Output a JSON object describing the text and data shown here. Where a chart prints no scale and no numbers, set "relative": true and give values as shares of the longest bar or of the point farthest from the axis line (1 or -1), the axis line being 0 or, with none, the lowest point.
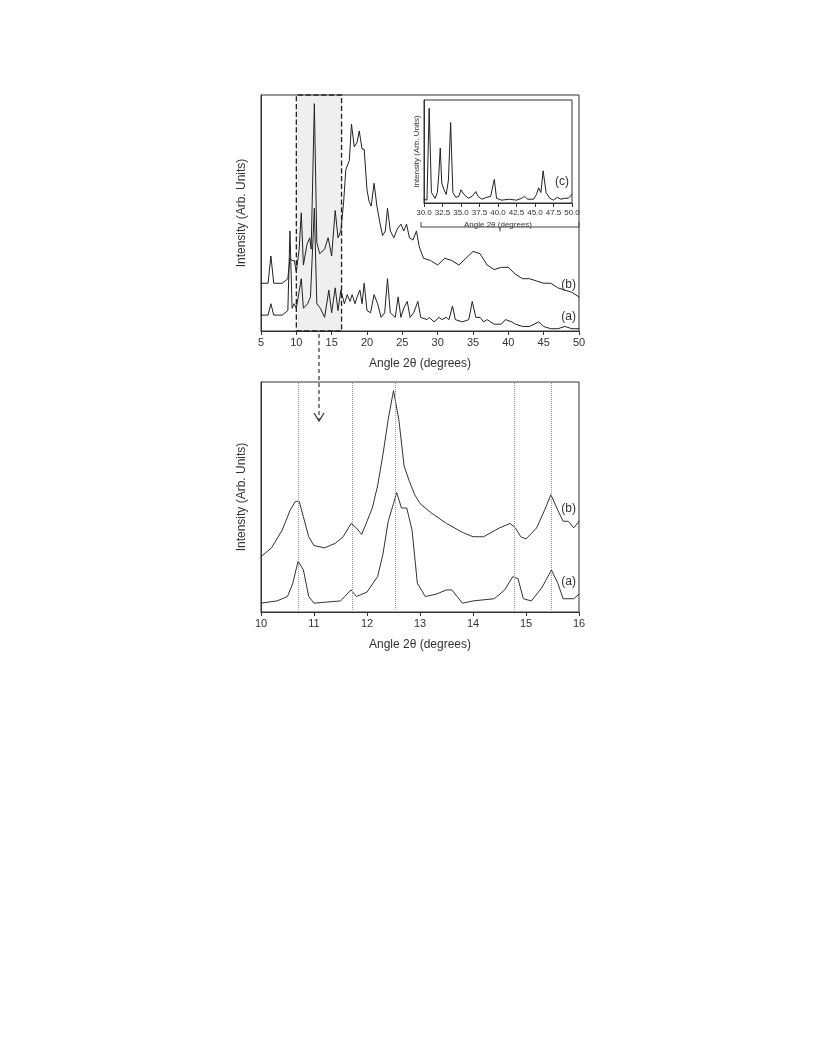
{
  "chart_data": [
    {
      "type": "line",
      "relative": true,
      "xlabel": "Angle 2θ (degrees)",
      "ylabel": "Intensity (Arb. Units)",
      "xlim": [
        5,
        50
      ],
      "xticks": [
        5,
        10,
        15,
        20,
        25,
        30,
        35,
        40,
        45,
        50
      ],
      "tick_labels": "x",
      "marker": "none",
      "line_style": "solid",
      "bands": [
        {
          "axis": "x",
          "from": 10,
          "to": 16.4,
          "color": "#222222"
        }
      ],
      "series": [
        {
          "name": "(b)",
          "color": "#222222",
          "x": [
            5,
            6,
            6.4,
            6.8,
            8,
            8.8,
            9.1,
            9.4,
            9.7,
            10,
            10.4,
            10.7,
            11,
            11.5,
            11.9,
            12.1,
            12.55,
            12.9,
            13.3,
            14,
            14.5,
            15,
            15.5,
            15.9,
            16.3,
            16.7,
            17,
            17.5,
            17.8,
            18.2,
            18.6,
            18.9,
            19.3,
            19.6,
            20,
            20.3,
            20.6,
            21,
            21.4,
            21.8,
            22.2,
            22.6,
            22.9,
            23.3,
            23.8,
            24.3,
            24.8,
            25.2,
            25.6,
            26,
            26.5,
            27,
            27.4,
            28,
            29,
            30,
            31,
            32,
            33,
            34,
            35,
            36,
            37,
            38,
            39,
            40,
            41,
            42,
            43,
            44,
            45,
            46,
            47,
            48,
            49,
            50
          ],
          "values": [
            0.21,
            0.21,
            0.33,
            0.21,
            0.21,
            0.23,
            0.32,
            0.31,
            0.31,
            0.26,
            0.36,
            0.52,
            0.29,
            0.38,
            0.41,
            0.36,
            1.0,
            0.39,
            0.34,
            0.36,
            0.41,
            0.33,
            0.53,
            0.41,
            0.44,
            0.57,
            0.71,
            0.75,
            0.91,
            0.81,
            0.83,
            0.88,
            0.8,
            0.8,
            0.62,
            0.57,
            0.55,
            0.65,
            0.55,
            0.48,
            0.42,
            0.44,
            0.54,
            0.44,
            0.41,
            0.45,
            0.47,
            0.44,
            0.47,
            0.41,
            0.4,
            0.44,
            0.37,
            0.32,
            0.31,
            0.29,
            0.32,
            0.31,
            0.29,
            0.32,
            0.35,
            0.34,
            0.29,
            0.27,
            0.28,
            0.28,
            0.25,
            0.23,
            0.23,
            0.22,
            0.21,
            0.21,
            0.19,
            0.18,
            0.17,
            0.15
          ]
        },
        {
          "name": "(a)",
          "color": "#222222",
          "x": [
            5,
            6,
            6.4,
            6.8,
            8,
            8.8,
            9.1,
            9.4,
            9.7,
            10,
            10.7,
            11,
            11.6,
            12,
            12.55,
            12.9,
            13.4,
            14,
            14.6,
            15,
            15.5,
            15.9,
            16.3,
            16.8,
            17.2,
            17.6,
            17.9,
            18.3,
            18.6,
            19,
            19.3,
            19.6,
            20,
            20.5,
            21,
            21.5,
            22,
            22.5,
            22.9,
            23.3,
            24,
            24.4,
            24.8,
            25.2,
            25.7,
            26.1,
            26.6,
            27.2,
            27.6,
            28.5,
            28.8,
            29.5,
            30.2,
            30.6,
            31.2,
            31.6,
            32.1,
            32.5,
            33.5,
            34.4,
            34.9,
            35.4,
            36,
            36.5,
            37,
            38,
            39,
            39.6,
            40.5,
            41,
            42,
            43,
            44.3,
            45,
            46,
            47,
            48,
            49,
            50
          ],
          "values": [
            0.07,
            0.07,
            0.12,
            0.07,
            0.07,
            0.09,
            0.44,
            0.1,
            0.12,
            0.1,
            0.23,
            0.1,
            0.12,
            0.15,
            0.54,
            0.12,
            0.1,
            0.06,
            0.18,
            0.08,
            0.19,
            0.09,
            0.18,
            0.12,
            0.16,
            0.13,
            0.16,
            0.12,
            0.15,
            0.18,
            0.12,
            0.21,
            0.09,
            0.08,
            0.16,
            0.12,
            0.06,
            0.08,
            0.23,
            0.08,
            0.06,
            0.15,
            0.06,
            0.1,
            0.13,
            0.06,
            0.08,
            0.13,
            0.06,
            0.05,
            0.06,
            0.04,
            0.06,
            0.05,
            0.06,
            0.05,
            0.11,
            0.05,
            0.04,
            0.05,
            0.13,
            0.06,
            0.06,
            0.04,
            0.05,
            0.03,
            0.03,
            0.05,
            0.04,
            0.03,
            0.02,
            0.02,
            0.04,
            0.02,
            0.01,
            0.01,
            0.02,
            0.01,
            0.01
          ]
        }
      ]
    },
    {
      "type": "line",
      "relative": true,
      "xlabel": "Angle 2θ (degrees)",
      "ylabel": "Intensity (Arb. Units)",
      "xlim": [
        30,
        50
      ],
      "xticks": [
        {
          "value": 30,
          "label": "30.0"
        },
        {
          "value": 32.5,
          "label": "32.5"
        },
        {
          "value": 35,
          "label": "35.0"
        },
        {
          "value": 37.5,
          "label": "37.5"
        },
        {
          "value": 40,
          "label": "40.0"
        },
        {
          "value": 42.5,
          "label": "42.5"
        },
        {
          "value": 45,
          "label": "45.0"
        },
        {
          "value": 47.5,
          "label": "47.5"
        },
        {
          "value": 50,
          "label": "50.0"
        }
      ],
      "tick_labels": "x",
      "marker": "none",
      "line_style": "solid",
      "series": [
        {
          "name": "(c)",
          "color": "#222222",
          "x": [
            30,
            30.4,
            30.7,
            31,
            31.5,
            31.8,
            32,
            32.2,
            32.4,
            32.7,
            33,
            33.3,
            33.6,
            33.9,
            34.3,
            34.7,
            35,
            35.4,
            36,
            36.5,
            37,
            37.3,
            37.8,
            38.5,
            39,
            39.5,
            39.8,
            40.5,
            41.5,
            42.5,
            43.2,
            43.6,
            44,
            44.8,
            45.2,
            45.5,
            45.8,
            46.1,
            46.5,
            47,
            47.5,
            48,
            48.5,
            49,
            49.5,
            50
          ],
          "values": [
            0.04,
            0.03,
            1.0,
            0.11,
            0.05,
            0.11,
            0.3,
            0.58,
            0.21,
            0.14,
            0.09,
            0.24,
            0.85,
            0.11,
            0.06,
            0.07,
            0.14,
            0.09,
            0.05,
            0.07,
            0.12,
            0.07,
            0.04,
            0.06,
            0.07,
            0.25,
            0.05,
            0.03,
            0.04,
            0.03,
            0.05,
            0.07,
            0.04,
            0.04,
            0.09,
            0.16,
            0.11,
            0.34,
            0.11,
            0.05,
            0.03,
            0.06,
            0.04,
            0.05,
            0.05,
            0.09
          ]
        }
      ]
    },
    {
      "type": "line",
      "relative": true,
      "xlabel": "Angle 2θ (degrees)",
      "ylabel": "Intensity (Arb. Units)",
      "xlim": [
        10,
        16
      ],
      "xticks": [
        10,
        11,
        12,
        13,
        14,
        15,
        16
      ],
      "tick_labels": "x",
      "marker": "none",
      "line_style": "solid",
      "ref_lines": [
        {
          "axis": "x",
          "value": 10.7,
          "color": "#999999",
          "line_style": "dotted"
        },
        {
          "axis": "x",
          "value": 11.72,
          "color": "#999999",
          "line_style": "dotted"
        },
        {
          "axis": "x",
          "value": 12.54,
          "color": "#999999",
          "line_style": "dotted"
        },
        {
          "axis": "x",
          "value": 14.77,
          "color": "#999999",
          "line_style": "dotted"
        },
        {
          "axis": "x",
          "value": 15.48,
          "color": "#999999",
          "line_style": "dotted"
        }
      ],
      "series": [
        {
          "name": "(b)",
          "color": "#333333",
          "x": [
            10,
            10.2,
            10.4,
            10.55,
            10.65,
            10.72,
            10.8,
            10.9,
            11,
            11.2,
            11.4,
            11.55,
            11.7,
            11.8,
            11.9,
            12,
            12.1,
            12.2,
            12.3,
            12.4,
            12.5,
            12.6,
            12.7,
            12.8,
            12.9,
            13,
            13.2,
            13.5,
            13.8,
            14,
            14.2,
            14.5,
            14.7,
            14.8,
            14.9,
            15,
            15.2,
            15.35,
            15.47,
            15.6,
            15.7,
            15.8,
            15.9,
            16
          ],
          "values": [
            0.25,
            0.29,
            0.37,
            0.46,
            0.5,
            0.5,
            0.43,
            0.34,
            0.3,
            0.29,
            0.31,
            0.34,
            0.4,
            0.38,
            0.35,
            0.41,
            0.47,
            0.57,
            0.71,
            0.87,
            1.0,
            0.87,
            0.66,
            0.59,
            0.53,
            0.49,
            0.45,
            0.4,
            0.36,
            0.34,
            0.34,
            0.38,
            0.4,
            0.38,
            0.34,
            0.33,
            0.38,
            0.46,
            0.53,
            0.46,
            0.41,
            0.41,
            0.38,
            0.41
          ]
        },
        {
          "name": "(a)",
          "color": "#333333",
          "x": [
            10,
            10.3,
            10.5,
            10.6,
            10.7,
            10.8,
            10.9,
            11,
            11.5,
            11.7,
            11.8,
            12,
            12.2,
            12.3,
            12.4,
            12.5,
            12.56,
            12.65,
            12.75,
            12.85,
            12.95,
            13.1,
            13.3,
            13.5,
            13.6,
            13.7,
            13.8,
            14,
            14.4,
            14.6,
            14.75,
            14.85,
            14.95,
            15.1,
            15.3,
            15.48,
            15.6,
            15.7,
            15.9,
            16
          ],
          "values": [
            0.04,
            0.05,
            0.07,
            0.13,
            0.23,
            0.19,
            0.07,
            0.04,
            0.05,
            0.1,
            0.07,
            0.09,
            0.16,
            0.26,
            0.41,
            0.49,
            0.54,
            0.47,
            0.47,
            0.37,
            0.13,
            0.07,
            0.08,
            0.1,
            0.1,
            0.07,
            0.04,
            0.05,
            0.06,
            0.1,
            0.16,
            0.15,
            0.06,
            0.05,
            0.11,
            0.19,
            0.13,
            0.06,
            0.06,
            0.08
          ]
        }
      ]
    }
  ]
}
